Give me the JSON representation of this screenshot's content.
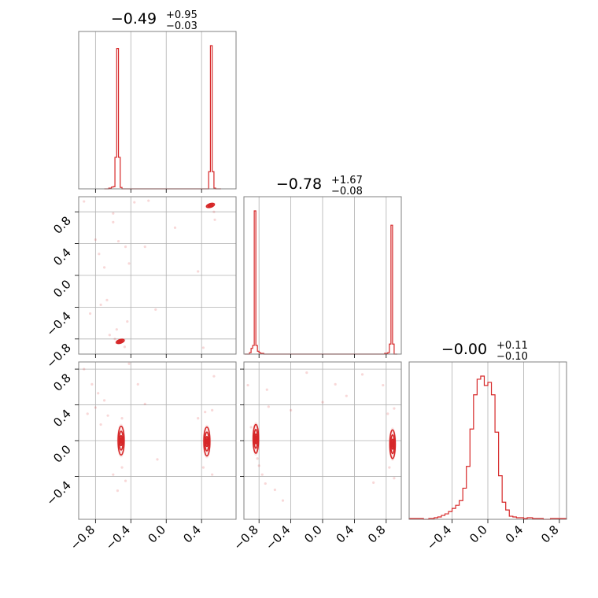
{
  "chart_data": {
    "type": "corner",
    "color": "#d62728",
    "grid": true,
    "parameters": [
      {
        "title_value": "−0.49",
        "title_plus": "+0.95",
        "title_minus": "−0.03",
        "range": [
          -0.99,
          0.79
        ],
        "ticks": [
          -0.8,
          -0.4,
          0.0,
          0.4
        ],
        "tick_labels": [
          "−0.8",
          "−0.4",
          "0.0",
          "0.4"
        ],
        "hist": {
          "edges": [
            -0.7,
            -0.65,
            -0.62,
            -0.6,
            -0.58,
            -0.56,
            -0.54,
            -0.52,
            -0.5,
            -0.48,
            -0.46,
            -0.4,
            0.4,
            0.46,
            0.48,
            0.5,
            0.52,
            0.54,
            0.56,
            0.58,
            0.6,
            0.62
          ],
          "counts": [
            0,
            0.005,
            0.012,
            0.015,
            0.22,
            0.98,
            0.22,
            0.01,
            0.0,
            0.0,
            0.0,
            0.0,
            0.0,
            0.0,
            0.12,
            1.0,
            0.12,
            0.005,
            0.0,
            0.0,
            0.0
          ]
        }
      },
      {
        "title_value": "−0.78",
        "title_plus": "+1.67",
        "title_minus": "−0.08",
        "range": [
          -0.99,
          0.99
        ],
        "ticks": [
          -0.8,
          -0.4,
          0.0,
          0.4,
          0.8
        ],
        "tick_labels": [
          "−0.8",
          "−0.4",
          "0.0",
          "0.4",
          "0.8"
        ],
        "hist": {
          "edges": [
            -0.98,
            -0.92,
            -0.9,
            -0.88,
            -0.86,
            -0.84,
            -0.82,
            -0.8,
            -0.78,
            -0.74,
            -0.6,
            0.6,
            0.78,
            0.82,
            0.84,
            0.86,
            0.88,
            0.9,
            0.92,
            0.94
          ],
          "counts": [
            0,
            0.01,
            0.04,
            0.06,
            1.0,
            0.06,
            0.02,
            0.01,
            0.005,
            0.0,
            0.0,
            0.0,
            0.005,
            0.01,
            0.07,
            0.9,
            0.07,
            0.0,
            0.0
          ]
        }
      },
      {
        "title_value": "−0.00",
        "title_plus": "+0.11",
        "title_minus": "−0.10",
        "range": [
          -0.88,
          0.88
        ],
        "ticks": [
          -0.4,
          0.0,
          0.4,
          0.8
        ],
        "tick_labels": [
          "−0.4",
          "0.0",
          "0.4",
          "0.8"
        ],
        "hist": {
          "edges": [
            -0.88,
            -0.72,
            -0.66,
            -0.6,
            -0.56,
            -0.52,
            -0.48,
            -0.44,
            -0.4,
            -0.36,
            -0.32,
            -0.28,
            -0.24,
            -0.2,
            -0.16,
            -0.12,
            -0.08,
            -0.04,
            0.0,
            0.04,
            0.08,
            0.12,
            0.16,
            0.2,
            0.24,
            0.28,
            0.32,
            0.36,
            0.4,
            0.44,
            0.5,
            0.56,
            0.62,
            0.7,
            0.88
          ],
          "counts": [
            0.005,
            0.0,
            0.005,
            0.01,
            0.015,
            0.025,
            0.035,
            0.05,
            0.07,
            0.09,
            0.12,
            0.2,
            0.34,
            0.58,
            0.8,
            0.9,
            0.92,
            0.86,
            0.88,
            0.8,
            0.56,
            0.28,
            0.11,
            0.06,
            0.02,
            0.015,
            0.01,
            0.01,
            0.005,
            0.01,
            0.005,
            0.005,
            0.0,
            0.005
          ]
        }
      }
    ],
    "scatter_panels": [
      {
        "x_param": 0,
        "y_param": 1,
        "blobs": [
          {
            "cx": -0.52,
            "cy": -0.83,
            "rx": 0.04,
            "ry": 0.02,
            "tilt": 0.3
          },
          {
            "cx": 0.5,
            "cy": 0.88,
            "rx": 0.04,
            "ry": 0.02,
            "tilt": 0.3
          }
        ],
        "points": [
          [
            -0.93,
            0.93
          ],
          [
            -0.86,
            -0.48
          ],
          [
            -0.8,
            0.45
          ],
          [
            -0.76,
            0.27
          ],
          [
            -0.74,
            -0.37
          ],
          [
            -0.7,
            0.1
          ],
          [
            -0.67,
            -0.31
          ],
          [
            -0.64,
            -0.75
          ],
          [
            -0.6,
            0.78
          ],
          [
            -0.56,
            -0.68
          ],
          [
            -0.54,
            0.43
          ],
          [
            -0.46,
            0.36
          ],
          [
            -0.44,
            -0.58
          ],
          [
            -0.42,
            0.15
          ],
          [
            -0.36,
            0.92
          ],
          [
            -0.24,
            0.36
          ],
          [
            -0.2,
            0.94
          ],
          [
            -0.12,
            -0.43
          ],
          [
            0.1,
            0.6
          ],
          [
            0.36,
            0.05
          ],
          [
            0.42,
            -0.91
          ],
          [
            0.55,
            0.7
          ],
          [
            -0.6,
            0.67
          ],
          [
            -0.58,
            -0.8
          ],
          [
            -0.47,
            -0.9
          ],
          [
            0.54,
            0.8
          ]
        ]
      },
      {
        "x_param": 0,
        "y_param": 2,
        "blobs": [
          {
            "cx": -0.51,
            "cy": 0.0,
            "rx": 0.03,
            "ry": 0.14,
            "tilt": 0
          },
          {
            "cx": 0.46,
            "cy": -0.01,
            "rx": 0.03,
            "ry": 0.14,
            "tilt": 0
          }
        ],
        "points": [
          [
            -0.93,
            0.8
          ],
          [
            -0.89,
            0.3
          ],
          [
            -0.84,
            0.63
          ],
          [
            -0.8,
            0.37
          ],
          [
            -0.77,
            0.53
          ],
          [
            -0.74,
            0.18
          ],
          [
            -0.7,
            0.45
          ],
          [
            -0.66,
            0.28
          ],
          [
            -0.6,
            -0.38
          ],
          [
            -0.55,
            -0.56
          ],
          [
            -0.46,
            -0.45
          ],
          [
            -0.42,
            0.86
          ],
          [
            -0.32,
            0.63
          ],
          [
            -0.24,
            0.41
          ],
          [
            -0.1,
            -0.21
          ],
          [
            0.36,
            0.25
          ],
          [
            0.42,
            -0.3
          ],
          [
            0.52,
            0.34
          ],
          [
            0.52,
            -0.38
          ],
          [
            0.54,
            0.72
          ],
          [
            -0.5,
            0.25
          ],
          [
            -0.5,
            -0.3
          ],
          [
            0.44,
            0.32
          ]
        ]
      },
      {
        "x_param": 1,
        "y_param": 2,
        "blobs": [
          {
            "cx": -0.84,
            "cy": 0.02,
            "rx": 0.03,
            "ry": 0.14,
            "tilt": 0
          },
          {
            "cx": 0.88,
            "cy": -0.04,
            "rx": 0.03,
            "ry": 0.14,
            "tilt": 0
          }
        ],
        "points": [
          [
            -0.94,
            0.62
          ],
          [
            -0.9,
            0.15
          ],
          [
            -0.82,
            -0.2
          ],
          [
            -0.8,
            -0.28
          ],
          [
            -0.76,
            -0.38
          ],
          [
            -0.72,
            -0.48
          ],
          [
            -0.7,
            0.57
          ],
          [
            -0.6,
            -0.55
          ],
          [
            -0.5,
            -0.67
          ],
          [
            -0.4,
            0.34
          ],
          [
            -0.2,
            0.76
          ],
          [
            0.0,
            0.43
          ],
          [
            0.16,
            0.63
          ],
          [
            0.3,
            0.5
          ],
          [
            0.5,
            0.74
          ],
          [
            0.64,
            -0.47
          ],
          [
            0.76,
            0.62
          ],
          [
            0.82,
            0.3
          ],
          [
            0.84,
            -0.3
          ],
          [
            -0.68,
            0.38
          ],
          [
            0.9,
            0.36
          ],
          [
            0.9,
            -0.42
          ]
        ]
      }
    ]
  }
}
